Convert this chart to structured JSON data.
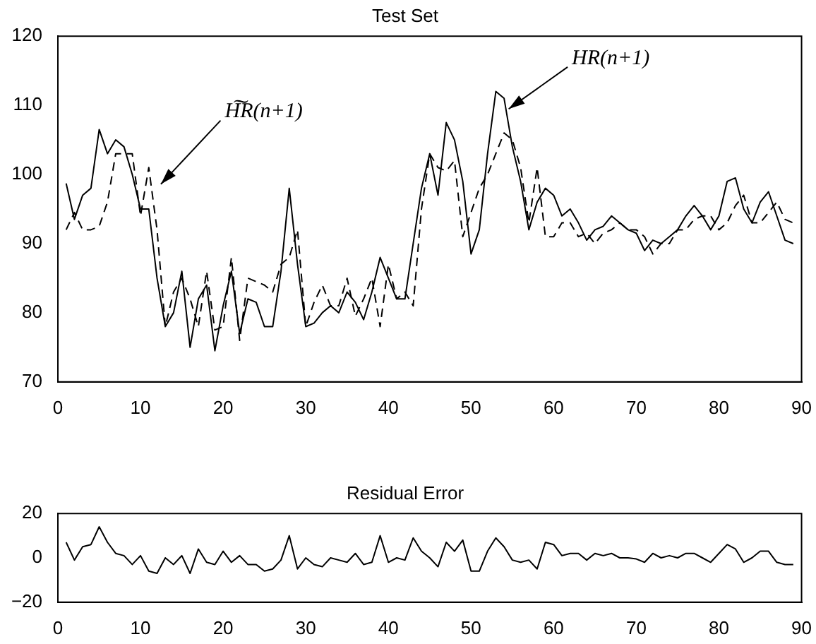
{
  "chart_data": [
    {
      "type": "line",
      "title": "Test Set",
      "x": [
        1,
        2,
        3,
        4,
        5,
        6,
        7,
        8,
        9,
        10,
        11,
        12,
        13,
        14,
        15,
        16,
        17,
        18,
        19,
        20,
        21,
        22,
        23,
        24,
        25,
        26,
        27,
        28,
        29,
        30,
        31,
        32,
        33,
        34,
        35,
        36,
        37,
        38,
        39,
        40,
        41,
        42,
        43,
        44,
        45,
        46,
        47,
        48,
        49,
        50,
        51,
        52,
        53,
        54,
        55,
        56,
        57,
        58,
        59,
        60,
        61,
        62,
        63,
        64,
        65,
        66,
        67,
        68,
        69,
        70,
        71,
        72,
        73,
        74,
        75,
        76,
        77,
        78,
        79,
        80,
        81,
        82,
        83,
        84,
        85,
        86,
        87,
        88,
        89
      ],
      "series": [
        {
          "color": "#000000",
          "line_style": "solid",
          "values": [
            98.7,
            93.5,
            97,
            98,
            106.5,
            103,
            105,
            104,
            100,
            95,
            95,
            85,
            78,
            80,
            86,
            75,
            82,
            84,
            74.5,
            81,
            86,
            77,
            82,
            81.5,
            78,
            78,
            86,
            98,
            87,
            78,
            78.5,
            80,
            81,
            80,
            83,
            81.5,
            79,
            83,
            88,
            85,
            82,
            82,
            90,
            98,
            103,
            97,
            107.5,
            105,
            99,
            88.5,
            92,
            103,
            112,
            111,
            104,
            99,
            92,
            96,
            98,
            97,
            94,
            95,
            93,
            90.5,
            92,
            92.5,
            94,
            93,
            92,
            91.5,
            89,
            90.5,
            90,
            91,
            92,
            94,
            95.5,
            94,
            92,
            94,
            99,
            99.5,
            95,
            93,
            96,
            97.5,
            94,
            90.5,
            90
          ]
        },
        {
          "color": "#000000",
          "line_style": "dashed",
          "values": [
            92,
            94.5,
            92,
            92,
            92.5,
            96,
            103,
            103,
            103,
            94,
            101,
            92,
            78,
            83,
            85,
            82,
            78,
            86,
            77.5,
            78,
            88,
            76,
            85,
            84.5,
            84,
            83,
            87,
            88,
            92,
            78,
            81.5,
            84,
            81,
            81,
            85,
            79.5,
            82,
            85,
            78,
            87,
            82,
            83,
            81,
            95,
            103,
            101,
            100.5,
            102,
            91,
            94.5,
            98,
            100,
            103,
            106,
            105,
            101,
            93,
            101,
            91,
            91,
            93,
            93,
            91,
            91.5,
            90,
            91.5,
            92,
            93,
            92,
            92,
            91,
            88.5,
            90,
            90,
            92,
            92,
            93.5,
            94,
            94,
            92,
            93,
            95.5,
            97,
            93,
            93,
            94.5,
            96,
            93.5,
            93
          ]
        }
      ],
      "xlim": [
        0,
        90
      ],
      "xticks": [
        0,
        10,
        20,
        30,
        40,
        50,
        60,
        70,
        80,
        90
      ],
      "ylim": [
        70,
        120
      ],
      "yticks": [
        70,
        80,
        90,
        100,
        110,
        120
      ],
      "grid": false,
      "legend": false,
      "annotations": [
        {
          "text": "H͠R(n+1)",
          "x": 12,
          "y": 98
        },
        {
          "text": "HR(n+1)",
          "x": 54,
          "y": 109
        }
      ]
    },
    {
      "type": "line",
      "title": "Residual Error",
      "x": [
        1,
        2,
        3,
        4,
        5,
        6,
        7,
        8,
        9,
        10,
        11,
        12,
        13,
        14,
        15,
        16,
        17,
        18,
        19,
        20,
        21,
        22,
        23,
        24,
        25,
        26,
        27,
        28,
        29,
        30,
        31,
        32,
        33,
        34,
        35,
        36,
        37,
        38,
        39,
        40,
        41,
        42,
        43,
        44,
        45,
        46,
        47,
        48,
        49,
        50,
        51,
        52,
        53,
        54,
        55,
        56,
        57,
        58,
        59,
        60,
        61,
        62,
        63,
        64,
        65,
        66,
        67,
        68,
        69,
        70,
        71,
        72,
        73,
        74,
        75,
        76,
        77,
        78,
        79,
        80,
        81,
        82,
        83,
        84,
        85,
        86,
        87,
        88,
        89
      ],
      "series": [
        {
          "color": "#000000",
          "line_style": "solid",
          "values": [
            7,
            -1,
            5,
            6,
            14,
            7,
            2,
            1,
            -3,
            1,
            -6,
            -7,
            0,
            -3,
            1,
            -7,
            4,
            -2,
            -3,
            3,
            -2,
            1,
            -3,
            -3,
            -6,
            -5,
            -1,
            10,
            -5,
            0,
            -3,
            -4,
            0,
            -1,
            -2,
            2,
            -3,
            -2,
            10,
            -2,
            0,
            -1,
            9,
            3,
            0,
            -4,
            7,
            3,
            8,
            -6,
            -6,
            3,
            9,
            5,
            -1,
            -2,
            -1,
            -5,
            7,
            6,
            1,
            2,
            2,
            -1,
            2,
            1,
            2,
            0,
            0,
            -0.5,
            -2,
            2,
            0,
            1,
            0,
            2,
            2,
            0,
            -2,
            2,
            6,
            4,
            -2,
            0,
            3,
            3,
            -2,
            -3,
            -3
          ]
        }
      ],
      "xlim": [
        0,
        90
      ],
      "xticks": [
        0,
        10,
        20,
        30,
        40,
        50,
        60,
        70,
        80,
        90
      ],
      "ylim": [
        -20,
        20
      ],
      "yticks": [
        {
          "value": -20,
          "label": "−20"
        },
        0,
        20
      ],
      "grid": false,
      "legend": false
    }
  ]
}
